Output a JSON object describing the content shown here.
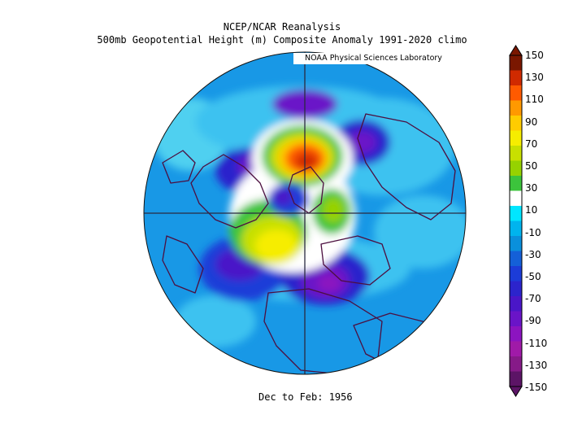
{
  "header": {
    "title": "NCEP/NCAR Reanalysis",
    "subtitle": "500mb Geopotential Height (m) Composite Anomaly 1991-2020 climo",
    "lab_label": "NOAA Physical Sciences Laboratory"
  },
  "footer": {
    "period": "Dec to Feb: 1956"
  },
  "map": {
    "projection": "north-polar-stereographic",
    "variable": "500mb geopotential height anomaly",
    "features": [
      {
        "name": "positive-anomaly-greenland-iceland",
        "level": "150"
      },
      {
        "name": "positive-anomaly-canadian-arctic",
        "level": "50"
      },
      {
        "name": "negative-anomaly-europe",
        "level": "-110"
      },
      {
        "name": "negative-anomaly-siberia",
        "level": "-90"
      },
      {
        "name": "negative-anomaly-north-pacific",
        "level": "-90"
      }
    ]
  },
  "colorbar": {
    "labels": [
      "150",
      "130",
      "110",
      "90",
      "70",
      "50",
      "30",
      "10",
      "-10",
      "-30",
      "-50",
      "-70",
      "-90",
      "-110",
      "-130",
      "-150"
    ],
    "colors": [
      "#7a1700",
      "#d02a00",
      "#ff5a00",
      "#ff9900",
      "#ffcc00",
      "#f6ed00",
      "#c8e000",
      "#96d200",
      "#3cc43c",
      "#ffffff",
      "#00e6ff",
      "#00b4ee",
      "#0a90dc",
      "#1460d8",
      "#1c3cd8",
      "#2c24cc",
      "#4a16c8",
      "#6a14c8",
      "#8c14c0",
      "#a01aa8",
      "#861a88",
      "#5c1466"
    ]
  }
}
